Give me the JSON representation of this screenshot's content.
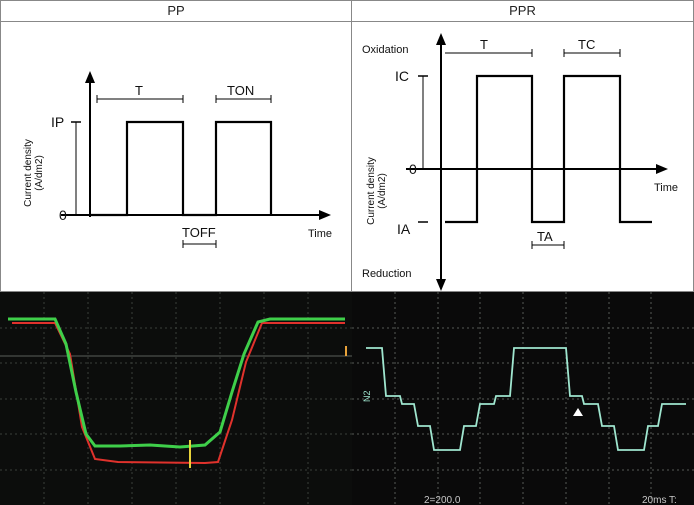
{
  "pp": {
    "title": "PP",
    "ylabel_line1": "Current density",
    "ylabel_line2": "(A/dm2)",
    "level_ip": "IP",
    "level_zero": "0",
    "period": "T",
    "on_time": "TON",
    "off_time": "TOFF",
    "xlabel": "Time"
  },
  "ppr": {
    "title": "PPR",
    "oxidation": "Oxidation",
    "reduction": "Reduction",
    "ylabel_line1": "Current density",
    "ylabel_line2": "(A/dm2)",
    "level_ic": "IC",
    "level_zero": "0",
    "level_ia": "IA",
    "period": "T",
    "cathodic_time": "TC",
    "anodic_time": "TA",
    "xlabel": "Time"
  },
  "scope_left": {
    "colors": {
      "trace_green": "#3fcf4a",
      "trace_red": "#e0322c",
      "marker": "#e8d23a",
      "grid": "#3a3f3a"
    }
  },
  "scope_right": {
    "readout_left": "2=200.0",
    "readout_right": "20ms T:",
    "channel_mark": "N2",
    "colors": {
      "trace": "#9fe6cf",
      "grid": "#555a55"
    }
  }
}
